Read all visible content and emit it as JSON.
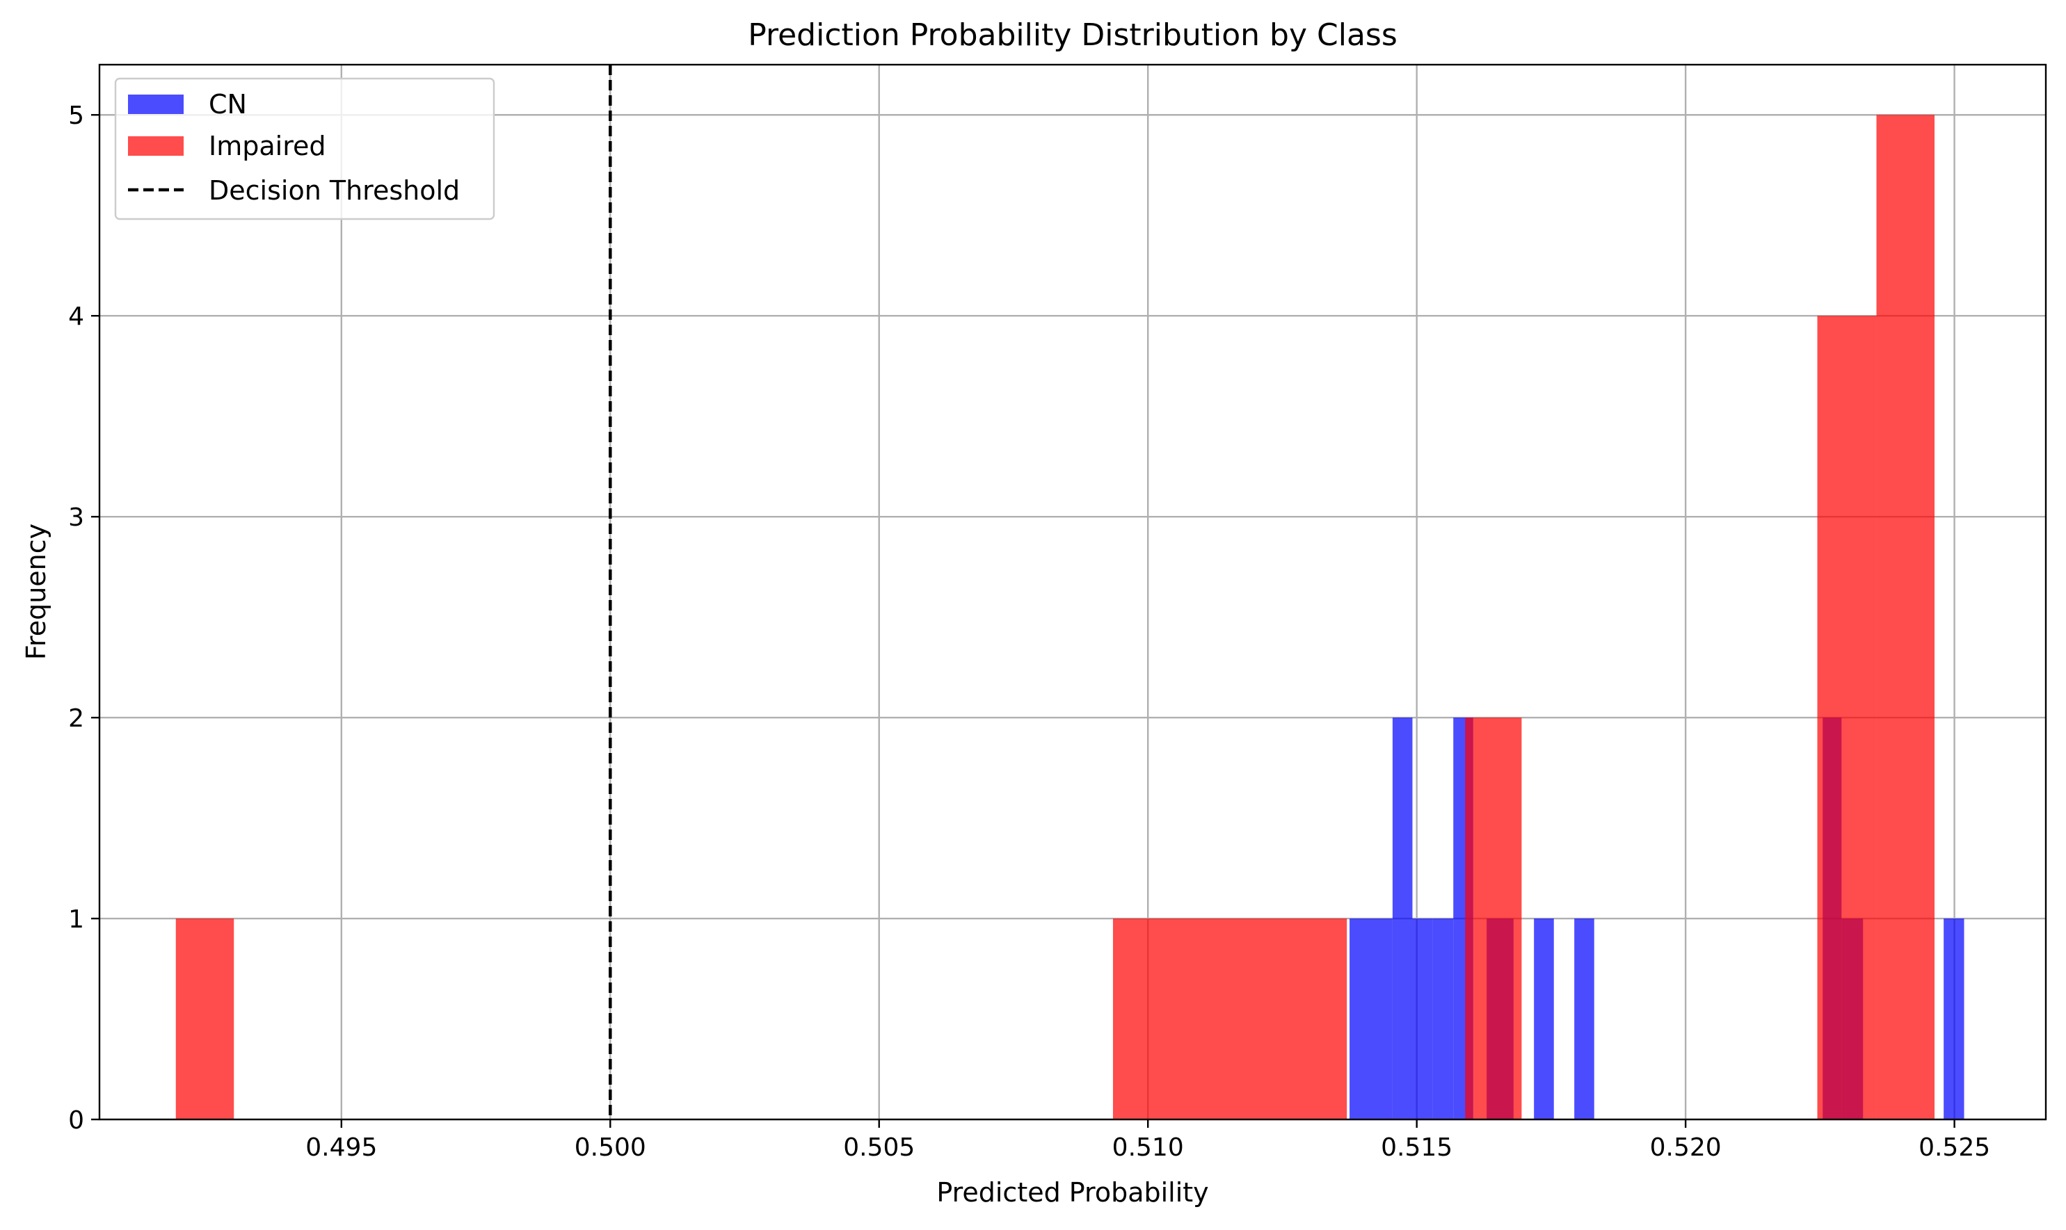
{
  "chart_data": {
    "type": "bar",
    "title": "Prediction Probability Distribution by Class",
    "xlabel": "Predicted Probability",
    "ylabel": "Frequency",
    "xlim": [
      0.4905,
      0.5267
    ],
    "ylim": [
      0,
      5.25
    ],
    "xticks": [
      0.495,
      0.5,
      0.505,
      0.51,
      0.515,
      0.52,
      0.525
    ],
    "xtick_labels": [
      "0.495",
      "0.500",
      "0.505",
      "0.510",
      "0.515",
      "0.520",
      "0.525"
    ],
    "yticks": [
      0,
      1,
      2,
      3,
      4,
      5
    ],
    "ytick_labels": [
      "0",
      "1",
      "2",
      "3",
      "4",
      "5"
    ],
    "grid": true,
    "legend_position": "top-left",
    "threshold": {
      "label": "Decision Threshold",
      "x": 0.5,
      "color": "#000000",
      "style": "dashed"
    },
    "series": [
      {
        "name": "CN",
        "color": "#0000ff",
        "alpha": 0.7,
        "bins": [
          {
            "x0": 0.51375,
            "x1": 0.51455,
            "count": 1
          },
          {
            "x0": 0.51455,
            "x1": 0.51492,
            "count": 2
          },
          {
            "x0": 0.51492,
            "x1": 0.5153,
            "count": 1
          },
          {
            "x0": 0.5153,
            "x1": 0.51568,
            "count": 1
          },
          {
            "x0": 0.51568,
            "x1": 0.51605,
            "count": 2
          },
          {
            "x0": 0.5163,
            "x1": 0.5168,
            "count": 1
          },
          {
            "x0": 0.51718,
            "x1": 0.51755,
            "count": 1
          },
          {
            "x0": 0.51793,
            "x1": 0.5183,
            "count": 1
          },
          {
            "x0": 0.52255,
            "x1": 0.5229,
            "count": 2
          },
          {
            "x0": 0.5229,
            "x1": 0.5233,
            "count": 1
          },
          {
            "x0": 0.5248,
            "x1": 0.52518,
            "count": 1
          }
        ]
      },
      {
        "name": "Impaired",
        "color": "#ff0000",
        "alpha": 0.7,
        "bins": [
          {
            "x0": 0.49192,
            "x1": 0.493,
            "count": 1
          },
          {
            "x0": 0.50935,
            "x1": 0.5137,
            "count": 1
          },
          {
            "x0": 0.5159,
            "x1": 0.51605,
            "count": 2
          },
          {
            "x0": 0.51605,
            "x1": 0.51695,
            "count": 2
          },
          {
            "x0": 0.52245,
            "x1": 0.52355,
            "count": 4
          },
          {
            "x0": 0.52355,
            "x1": 0.52463,
            "count": 5
          }
        ]
      }
    ]
  }
}
